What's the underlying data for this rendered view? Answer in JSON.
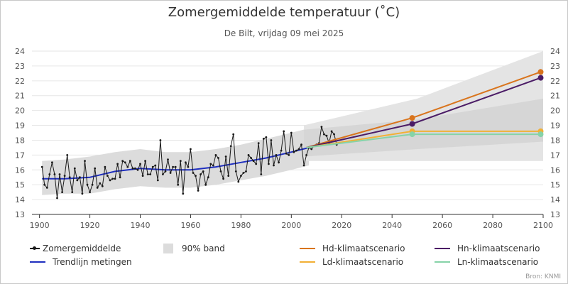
{
  "header": {
    "title": "Zomergemiddelde temperatuur (˚C)",
    "subtitle": "De Bilt, vrijdag 09 mei 2025"
  },
  "credit": "Bron: KNMI",
  "colors": {
    "observed": "#1a1a1a",
    "trend": "#1f2fbf",
    "band": "#dcdcdc",
    "Hd": "#d9741c",
    "Hn": "#4b1c66",
    "Ld": "#f2b035",
    "Ln": "#86d3a8"
  },
  "legend": [
    {
      "key": "observed",
      "label": "Zomergemiddelde",
      "symbol": "line-dot"
    },
    {
      "key": "band",
      "label": "90% band",
      "symbol": "box"
    },
    {
      "key": "Hd",
      "label": "Hd-klimaatscenario",
      "symbol": "line"
    },
    {
      "key": "Hn",
      "label": "Hn-klimaatscenario",
      "symbol": "line"
    },
    {
      "key": "trend",
      "label": "Trendlijn metingen",
      "symbol": "line"
    },
    {
      "key": "Ld",
      "label": "Ld-klimaatscenario",
      "symbol": "line"
    },
    {
      "key": "Ln",
      "label": "Ln-klimaatscenario",
      "symbol": "line"
    }
  ],
  "chart_data": {
    "type": "line",
    "title": "Zomergemiddelde temperatuur (˚C)",
    "subtitle": "De Bilt, vrijdag 09 mei 2025",
    "xlim": [
      1897,
      2100
    ],
    "ylim": [
      13,
      24
    ],
    "xticks": [
      1900,
      1920,
      1940,
      1960,
      1980,
      2000,
      2020,
      2040,
      2060,
      2080,
      2100
    ],
    "yticks": [
      13,
      14,
      15,
      16,
      17,
      18,
      19,
      20,
      21,
      22,
      23,
      24
    ],
    "grid": true,
    "legend_position": "bottom",
    "observed": {
      "name": "Zomergemiddelde",
      "start_year": 1901,
      "values": [
        16.2,
        15.0,
        14.8,
        15.7,
        16.5,
        15.7,
        14.1,
        15.7,
        14.5,
        15.6,
        17.0,
        15.5,
        14.5,
        16.1,
        15.3,
        15.5,
        14.4,
        16.6,
        15.0,
        14.5,
        15.0,
        16.1,
        14.8,
        15.1,
        14.9,
        16.2,
        15.6,
        15.3,
        15.4,
        15.4,
        16.4,
        15.5,
        16.6,
        16.5,
        16.2,
        16.6,
        16.1,
        16.1,
        16.0,
        16.4,
        15.6,
        16.6,
        15.7,
        15.7,
        16.2,
        16.3,
        15.3,
        18.0,
        15.7,
        15.9,
        16.7,
        15.8,
        16.2,
        16.2,
        15.0,
        16.6,
        14.4,
        16.5,
        16.2,
        17.4,
        15.8,
        15.6,
        14.6,
        15.7,
        15.9,
        15.0,
        15.5,
        16.4,
        16.3,
        17.0,
        16.8,
        15.9,
        15.4,
        16.9,
        15.6,
        17.6,
        18.4,
        15.9,
        15.2,
        15.6,
        15.8,
        15.9,
        17.0,
        16.8,
        16.6,
        16.4,
        17.8,
        15.7,
        18.1,
        18.2,
        16.4,
        18.0,
        16.3,
        17.0,
        16.5,
        17.3,
        18.6,
        17.1,
        17.0,
        18.5,
        17.2,
        17.3,
        17.4,
        17.7,
        16.3,
        17.0,
        17.5,
        17.4,
        17.6,
        17.7,
        17.8,
        18.9,
        18.4,
        18.3,
        17.8,
        18.6,
        18.4,
        17.7
      ]
    },
    "trend": {
      "name": "Trendlijn metingen",
      "x": [
        1901,
        1910,
        1920,
        1930,
        1940,
        1950,
        1960,
        1970,
        1980,
        1990,
        2000,
        2007
      ],
      "y": [
        15.4,
        15.4,
        15.5,
        15.9,
        16.1,
        16.0,
        16.0,
        16.2,
        16.5,
        16.8,
        17.2,
        17.5
      ]
    },
    "band": {
      "name": "90% band",
      "observed": {
        "x": [
          1901,
          1910,
          1920,
          1930,
          1940,
          1950,
          1960,
          1970,
          1980,
          1990,
          2000,
          2007
        ],
        "upper": [
          16.6,
          16.7,
          16.9,
          17.2,
          17.4,
          17.2,
          17.2,
          17.4,
          17.7,
          18.1,
          18.5,
          18.8
        ],
        "lower": [
          14.3,
          14.4,
          14.4,
          14.7,
          14.9,
          14.8,
          14.8,
          15.0,
          15.3,
          15.6,
          16.0,
          16.3
        ]
      },
      "scenarios_outer": {
        "x": [
          2005,
          2050,
          2100
        ],
        "upper": [
          19.0,
          20.8,
          24.0
        ],
        "lower": [
          16.6,
          16.6,
          16.6
        ]
      },
      "scenarios_inner": {
        "x": [
          2005,
          2050,
          2100
        ],
        "upper": [
          18.7,
          19.4,
          20.8
        ],
        "lower": [
          16.9,
          17.4,
          17.9
        ]
      }
    },
    "scenarios": [
      {
        "name": "Hd-klimaatscenario",
        "key": "Hd",
        "x": [
          2006,
          2048,
          2099
        ],
        "y": [
          17.5,
          19.5,
          22.6
        ]
      },
      {
        "name": "Hn-klimaatscenario",
        "key": "Hn",
        "x": [
          2006,
          2048,
          2099
        ],
        "y": [
          17.5,
          19.1,
          22.2
        ]
      },
      {
        "name": "Ld-klimaatscenario",
        "key": "Ld",
        "x": [
          2006,
          2048,
          2099
        ],
        "y": [
          17.5,
          18.6,
          18.6
        ]
      },
      {
        "name": "Ln-klimaatscenario",
        "key": "Ln",
        "x": [
          2006,
          2048,
          2099
        ],
        "y": [
          17.5,
          18.4,
          18.4
        ]
      }
    ]
  }
}
